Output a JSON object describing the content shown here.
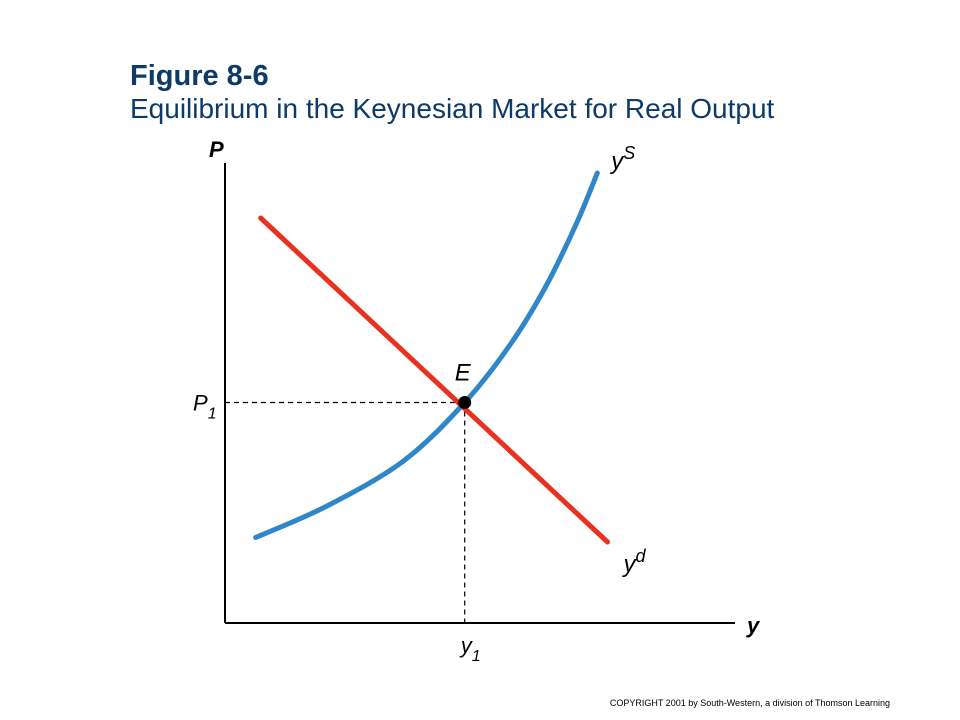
{
  "figure": {
    "number": "Figure 8-6",
    "title": "Equilibrium in the Keynesian Market for Real Output"
  },
  "copyright": "COPYRIGHT 2001 by South-Western, a division of Thomson Learning",
  "colors": {
    "title": "#0d3a66",
    "supply": "#2f86c8",
    "demand": "#e8321f",
    "axes": "#000000",
    "guides": "#000000"
  },
  "chart_data": {
    "type": "line",
    "xlabel": "y",
    "ylabel": "P",
    "xlim": [
      0,
      10
    ],
    "ylim": [
      0,
      10
    ],
    "grid": false,
    "ticks_shown": false,
    "series": [
      {
        "name": "yS",
        "label_main": "y",
        "label_sup": "S",
        "color": "#2f86c8",
        "shape": "upward-sloping convex curve",
        "points": [
          [
            0.6,
            1.9
          ],
          [
            2.0,
            2.6
          ],
          [
            3.5,
            3.6
          ],
          [
            4.7,
            4.9
          ],
          [
            5.6,
            6.2
          ],
          [
            6.3,
            7.5
          ],
          [
            6.9,
            8.9
          ],
          [
            7.3,
            10.0
          ]
        ]
      },
      {
        "name": "yd",
        "label_main": "y",
        "label_sup": "d",
        "color": "#e8321f",
        "shape": "downward-sloping straight line",
        "points": [
          [
            0.7,
            9.0
          ],
          [
            7.5,
            1.8
          ]
        ]
      }
    ],
    "equilibrium": {
      "label": "E",
      "point": [
        4.7,
        4.9
      ],
      "x_label_main": "y",
      "x_label_sub": "1",
      "y_label_main": "P",
      "y_label_sub": "1"
    }
  }
}
